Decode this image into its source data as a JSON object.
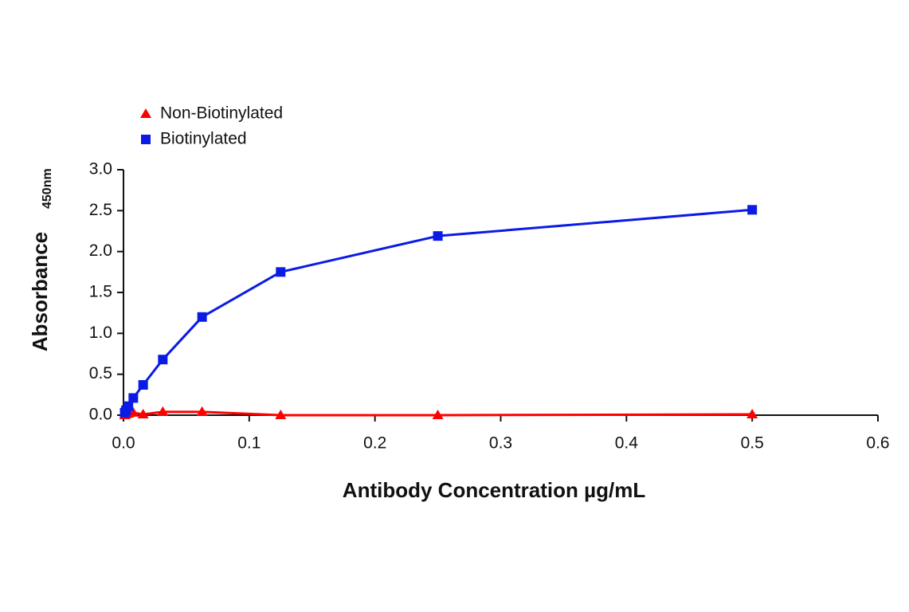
{
  "chart_data": {
    "type": "line",
    "x_label": "Antibody Concentration µg/mL",
    "y_label": "Absorbance",
    "y_label_subscript": "450nm",
    "series": [
      {
        "name": "Non-Biotinylated",
        "color": "#ff0000",
        "marker": "triangle",
        "x": [
          0.0009765625,
          0.001953125,
          0.00390625,
          0.0078125,
          0.015625,
          0.03125,
          0.0625,
          0.125,
          0.25,
          0.5
        ],
        "values": [
          0.0,
          0.01,
          0.02,
          0.03,
          0.01,
          0.04,
          0.04,
          0.0,
          0.0,
          0.01
        ]
      },
      {
        "name": "Biotinylated",
        "color": "#0a1be6",
        "marker": "square",
        "x": [
          0.0009765625,
          0.001953125,
          0.00390625,
          0.0078125,
          0.015625,
          0.03125,
          0.0625,
          0.125,
          0.25,
          0.5
        ],
        "values": [
          0.03,
          0.06,
          0.11,
          0.21,
          0.37,
          0.68,
          1.2,
          1.75,
          2.19,
          2.51
        ]
      }
    ],
    "xlim": [
      0,
      0.6
    ],
    "xticks": [
      {
        "value": 0,
        "label": "0.0"
      },
      0.1,
      0.2,
      0.3,
      0.4,
      0.5,
      0.6
    ],
    "ylim": [
      0,
      3
    ],
    "yticks": [
      {
        "value": 0,
        "label": "0.0"
      },
      0.5,
      {
        "value": 1,
        "label": "1.0"
      },
      1.5,
      {
        "value": 2,
        "label": "2.0"
      },
      2.5,
      {
        "value": 3,
        "label": "3.0"
      }
    ],
    "legend": "upper-left"
  }
}
